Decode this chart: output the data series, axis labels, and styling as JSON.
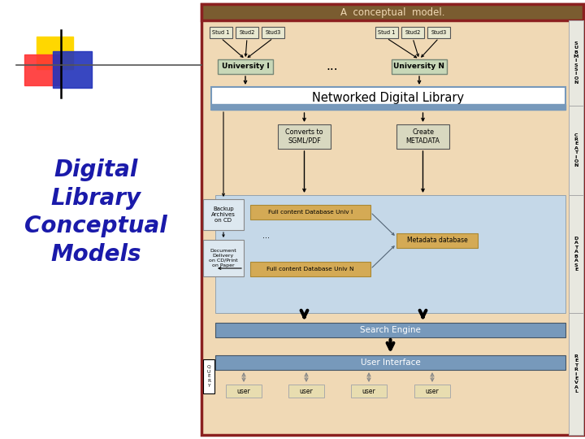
{
  "bg_color": "#ffffff",
  "diagram_bg": "#f0d9b5",
  "diagram_border": "#8b2020",
  "header_color": "#7a5c30",
  "header_text": "A  conceptual  model.",
  "header_text_color": "#f0d9b5",
  "ndl_box_color": "#ffffff",
  "ndl_box_border": "#7799bb",
  "ndl_text": "Networked Digital Library",
  "univ_box_color": "#c8d8b8",
  "stud_box_color": "#e8e8d0",
  "creation_box_color": "#d8d8c0",
  "db_area_color": "#c5d8e8",
  "search_box_color": "#7799bb",
  "ui_box_color": "#7799bb",
  "user_box_color": "#e8ddb0",
  "metadata_box_color": "#d4aa55",
  "fulldb_box_color": "#d4aa55",
  "backup_box_color": "#dde8f0",
  "query_box_color": "#ffffff",
  "side_label_bg": "#e8e8e0",
  "logo_yellow": "#FFD700",
  "logo_red": "#FF3333",
  "logo_blue": "#2233BB",
  "text_blue": "#1a1aaa",
  "side_labels": [
    "S\nU\nB\nM\nI\nS\nS\nI\nO\nN",
    "C\nR\nE\nA\nT\nI\nO\nN",
    "D\nA\nT\nA\nB\nA\nS\nE",
    "R\nE\nT\nR\nI\nE\nV\nA\nL"
  ]
}
